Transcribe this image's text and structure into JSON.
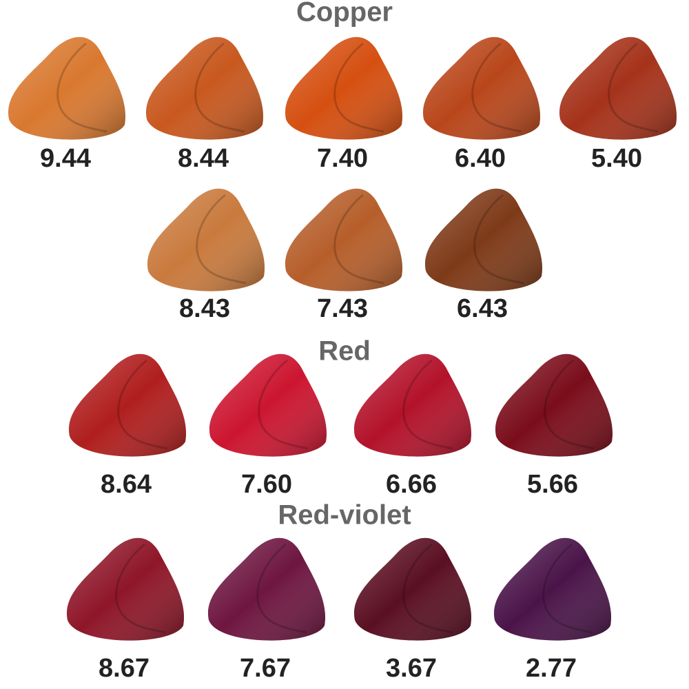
{
  "sections": [
    {
      "title": "Copper",
      "rows": [
        [
          {
            "label": "9.44",
            "color": "#d9782f"
          },
          {
            "label": "8.44",
            "color": "#c8581e"
          },
          {
            "label": "7.40",
            "color": "#d54f10"
          },
          {
            "label": "6.40",
            "color": "#b9461a"
          },
          {
            "label": "5.40",
            "color": "#a5321a"
          }
        ],
        [
          {
            "label": "8.43",
            "color": "#c97a3d"
          },
          {
            "label": "7.43",
            "color": "#b65e2a"
          },
          {
            "label": "6.43",
            "color": "#7e3a18"
          }
        ]
      ]
    },
    {
      "title": "Red",
      "rows": [
        [
          {
            "label": "8.64",
            "color": "#b01e1e"
          },
          {
            "label": "7.60",
            "color": "#cc1530"
          },
          {
            "label": "6.66",
            "color": "#b3122a"
          },
          {
            "label": "5.66",
            "color": "#7a0d1a"
          }
        ]
      ]
    },
    {
      "title": "Red-violet",
      "rows": [
        [
          {
            "label": "8.67",
            "color": "#8e1628"
          },
          {
            "label": "7.67",
            "color": "#6e1640"
          },
          {
            "label": "3.67",
            "color": "#5a0f22"
          },
          {
            "label": "2.77",
            "color": "#4a1448"
          }
        ]
      ]
    }
  ]
}
